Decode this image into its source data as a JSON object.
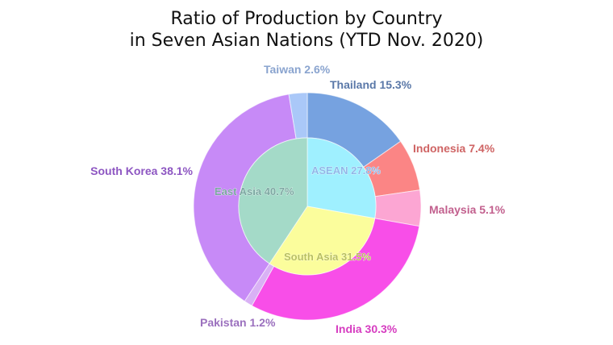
{
  "chart_data": {
    "type": "pie",
    "subtype": "nested-donut",
    "title_line1": "Ratio of Production by Country",
    "title_line2": "in Seven Asian Nations (YTD Nov. 2020)",
    "inner_ring": [
      {
        "name": "ASEAN",
        "value": 27.8,
        "label": "ASEAN 27.8%",
        "color": "#9ff0ff",
        "label_color": "#8fb7e8"
      },
      {
        "name": "South Asia",
        "value": 31.5,
        "label": "South Asia 31.5%",
        "color": "#fbfd9c",
        "label_color": "#b9c05c"
      },
      {
        "name": "East Asia",
        "value": 40.7,
        "label": "East Asia 40.7%",
        "color": "#a4dac8",
        "label_color": "#7aa6a0"
      }
    ],
    "outer_ring": [
      {
        "name": "Thailand",
        "value": 15.3,
        "label": "Thailand 15.3%",
        "color": "#76a2e0",
        "label_color": "#5a78a8"
      },
      {
        "name": "Indonesia",
        "value": 7.4,
        "label": "Indonesia 7.4%",
        "color": "#fb8585",
        "label_color": "#cf6464"
      },
      {
        "name": "Malaysia",
        "value": 5.1,
        "label": "Malaysia 5.1%",
        "color": "#fca6d3",
        "label_color": "#c2608e"
      },
      {
        "name": "India",
        "value": 30.3,
        "label": "India 30.3%",
        "color": "#f84ee8",
        "label_color": "#d63cc0"
      },
      {
        "name": "Pakistan",
        "value": 1.2,
        "label": "Pakistan 1.2%",
        "color": "#d9b1f5",
        "label_color": "#9b70be"
      },
      {
        "name": "South Korea",
        "value": 38.1,
        "label": "South Korea 38.1%",
        "color": "#c78af7",
        "label_color": "#8d56c2"
      },
      {
        "name": "Taiwan",
        "value": 2.6,
        "label": "Taiwan 2.6%",
        "color": "#aac8f8",
        "label_color": "#8aa4cf"
      }
    ]
  }
}
